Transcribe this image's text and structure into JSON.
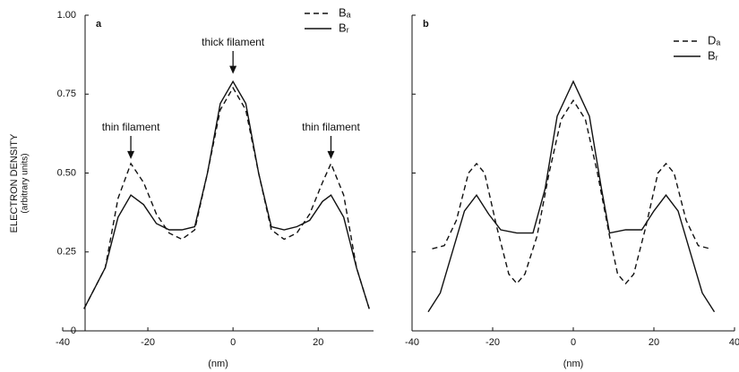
{
  "chart_data": [
    {
      "type": "line",
      "panel": "a",
      "xlabel": "(nm)",
      "ylabel": [
        "ELECTRON DENSITY",
        "(arbitrary units)"
      ],
      "xlim": [
        -40,
        33
      ],
      "xticks": [
        -40,
        -20,
        0,
        20
      ],
      "ylim": [
        0,
        1
      ],
      "yticks": [
        0,
        {
          "value": 0.25,
          "label": "0.25"
        },
        {
          "value": 0.5,
          "label": "0.50"
        },
        {
          "value": 0.75,
          "label": "0.75"
        },
        {
          "value": 1,
          "label": "1.00"
        }
      ],
      "show_ytick_labels": true,
      "legend": "upper right",
      "annotations": [
        "thin filament",
        "thick filament",
        "thin filament"
      ],
      "series": [
        {
          "name": "Bₐ",
          "color": "#111111",
          "dashed": true,
          "x": [
            -35,
            -30,
            -27,
            -24,
            -21,
            -18,
            -15,
            -12,
            -9,
            -6,
            -3,
            0,
            3,
            6,
            9,
            12,
            15,
            18,
            21,
            23,
            26,
            29,
            32
          ],
          "values": [
            0.07,
            0.2,
            0.42,
            0.53,
            0.47,
            0.37,
            0.31,
            0.29,
            0.32,
            0.5,
            0.7,
            0.77,
            0.7,
            0.5,
            0.32,
            0.29,
            0.31,
            0.37,
            0.47,
            0.53,
            0.43,
            0.2,
            0.07
          ]
        },
        {
          "name": "Bᵣ",
          "color": "#111111",
          "dashed": false,
          "x": [
            -35,
            -30,
            -27,
            -24,
            -21,
            -18,
            -15,
            -12,
            -9,
            -6,
            -3,
            0,
            3,
            6,
            9,
            12,
            15,
            18,
            21,
            23,
            26,
            29,
            32
          ],
          "values": [
            0.07,
            0.2,
            0.36,
            0.43,
            0.4,
            0.34,
            0.32,
            0.32,
            0.33,
            0.5,
            0.72,
            0.79,
            0.72,
            0.5,
            0.33,
            0.32,
            0.33,
            0.35,
            0.41,
            0.43,
            0.36,
            0.2,
            0.07
          ]
        }
      ]
    },
    {
      "type": "line",
      "panel": "b",
      "xlabel": "(nm)",
      "xlim": [
        -40,
        40
      ],
      "xticks": [
        -40,
        -20,
        0,
        20,
        40
      ],
      "ylim": [
        0,
        1
      ],
      "yticks": [
        0,
        0.25,
        0.5,
        0.75,
        1
      ],
      "show_ytick_labels": false,
      "legend": "upper right",
      "series": [
        {
          "name": "Dₐ",
          "color": "#111111",
          "dashed": true,
          "x": [
            -35,
            -32,
            -29,
            -26,
            -24,
            -22,
            -19,
            -16,
            -14,
            -12,
            -9,
            -6,
            -3,
            0,
            3,
            6,
            9,
            11,
            13,
            15,
            18,
            21,
            23,
            25,
            28,
            31,
            34
          ],
          "values": [
            0.26,
            0.27,
            0.35,
            0.5,
            0.53,
            0.5,
            0.33,
            0.18,
            0.15,
            0.18,
            0.3,
            0.5,
            0.67,
            0.73,
            0.67,
            0.5,
            0.3,
            0.18,
            0.15,
            0.18,
            0.33,
            0.5,
            0.53,
            0.5,
            0.35,
            0.27,
            0.26
          ]
        },
        {
          "name": "Bᵣ",
          "color": "#111111",
          "dashed": false,
          "x": [
            -36,
            -33,
            -30,
            -27,
            -24,
            -21,
            -18,
            -14,
            -10,
            -7,
            -4,
            0,
            4,
            7,
            9,
            13,
            17,
            20,
            23,
            26,
            29,
            32,
            35
          ],
          "values": [
            0.06,
            0.12,
            0.25,
            0.38,
            0.43,
            0.37,
            0.32,
            0.31,
            0.31,
            0.45,
            0.68,
            0.79,
            0.68,
            0.45,
            0.31,
            0.32,
            0.32,
            0.38,
            0.43,
            0.38,
            0.25,
            0.12,
            0.06
          ]
        }
      ]
    }
  ]
}
